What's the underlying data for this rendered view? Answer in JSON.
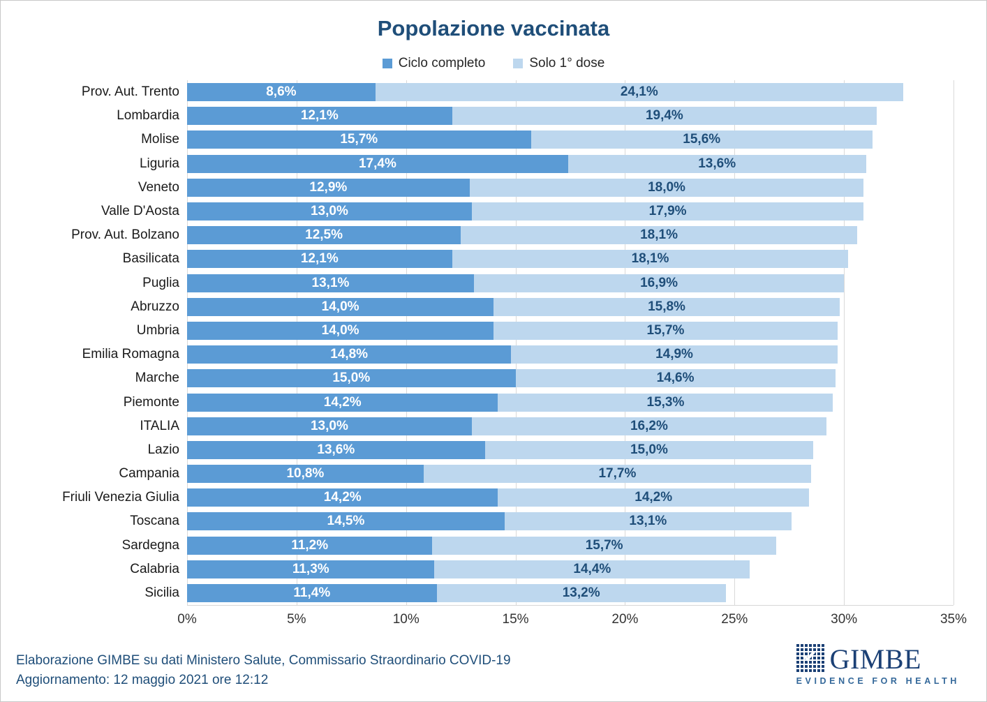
{
  "title": "Popolazione vaccinata",
  "legend": [
    {
      "label": "Ciclo completo",
      "color": "#5B9BD5"
    },
    {
      "label": "Solo 1° dose",
      "color": "#BDD7EE"
    }
  ],
  "chart_data": {
    "type": "bar",
    "orientation": "horizontal",
    "stacked": true,
    "title": "Popolazione vaccinata",
    "categories": [
      "Prov. Aut. Trento",
      "Lombardia",
      "Molise",
      "Liguria",
      "Veneto",
      "Valle D'Aosta",
      "Prov. Aut. Bolzano",
      "Basilicata",
      "Puglia",
      "Abruzzo",
      "Umbria",
      "Emilia Romagna",
      "Marche",
      "Piemonte",
      "ITALIA",
      "Lazio",
      "Campania",
      "Friuli Venezia Giulia",
      "Toscana",
      "Sardegna",
      "Calabria",
      "Sicilia"
    ],
    "series": [
      {
        "name": "Ciclo completo",
        "color": "#5B9BD5",
        "values": [
          8.6,
          12.1,
          15.7,
          17.4,
          12.9,
          13.0,
          12.5,
          12.1,
          13.1,
          14.0,
          14.0,
          14.8,
          15.0,
          14.2,
          13.0,
          13.6,
          10.8,
          14.2,
          14.5,
          11.2,
          11.3,
          11.4
        ],
        "labels": [
          "8,6%",
          "12,1%",
          "15,7%",
          "17,4%",
          "12,9%",
          "13,0%",
          "12,5%",
          "12,1%",
          "13,1%",
          "14,0%",
          "14,0%",
          "14,8%",
          "15,0%",
          "14,2%",
          "13,0%",
          "13,6%",
          "10,8%",
          "14,2%",
          "14,5%",
          "11,2%",
          "11,3%",
          "11,4%"
        ]
      },
      {
        "name": "Solo 1° dose",
        "color": "#BDD7EE",
        "values": [
          24.1,
          19.4,
          15.6,
          13.6,
          18.0,
          17.9,
          18.1,
          18.1,
          16.9,
          15.8,
          15.7,
          14.9,
          14.6,
          15.3,
          16.2,
          15.0,
          17.7,
          14.2,
          13.1,
          15.7,
          14.4,
          13.2
        ],
        "labels": [
          "24,1%",
          "19,4%",
          "15,6%",
          "13,6%",
          "18,0%",
          "17,9%",
          "18,1%",
          "18,1%",
          "16,9%",
          "15,8%",
          "15,7%",
          "14,9%",
          "14,6%",
          "15,3%",
          "16,2%",
          "15,0%",
          "17,7%",
          "14,2%",
          "13,1%",
          "15,7%",
          "14,4%",
          "13,2%"
        ]
      }
    ],
    "xlim": [
      0,
      35
    ],
    "x_ticks": [
      {
        "value": 0,
        "label": "0%"
      },
      {
        "value": 5,
        "label": "5%"
      },
      {
        "value": 10,
        "label": "10%"
      },
      {
        "value": 15,
        "label": "15%"
      },
      {
        "value": 20,
        "label": "20%"
      },
      {
        "value": 25,
        "label": "25%"
      },
      {
        "value": 30,
        "label": "30%"
      },
      {
        "value": 35,
        "label": "35%"
      }
    ],
    "grid": true,
    "legend_position": "top"
  },
  "footer": {
    "line1": "Elaborazione GIMBE su dati Ministero Salute, Commissario Straordinario COVID-19",
    "line2": "Aggiornamento: 12 maggio 2021 ore 12:12"
  },
  "logo": {
    "name": "GIMBE",
    "tagline": "EVIDENCE FOR HEALTH"
  },
  "colors": {
    "title": "#1F4E79",
    "series_complete": "#5B9BD5",
    "series_first_dose": "#BDD7EE",
    "label_on_dark": "#FFFFFF",
    "label_on_light": "#1F4E79",
    "gridline": "#D9D9D9",
    "footer_text": "#1F4E79",
    "logo_navy": "#1B4075"
  }
}
